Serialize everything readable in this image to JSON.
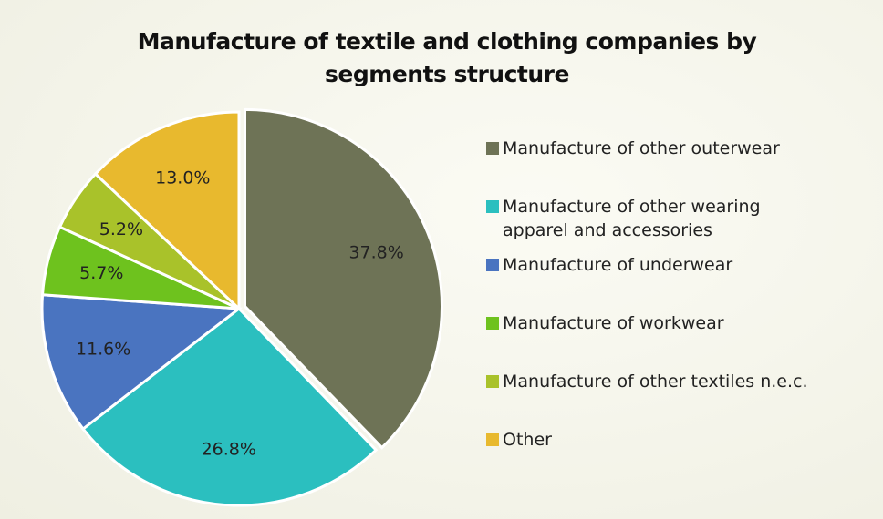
{
  "chart_data": {
    "type": "pie",
    "title": "Manufacture of textile and clothing companies by segments structure",
    "categories": [
      "Manufacture of other outerwear",
      "Manufacture of other wearing apparel and accessories",
      "Manufacture of underwear",
      "Manufacture of workwear",
      "Manufacture of other textiles n.e.c.",
      "Other"
    ],
    "values": [
      37.8,
      26.8,
      11.6,
      5.7,
      5.2,
      13.0
    ],
    "value_labels": [
      "37.8%",
      "26.8%",
      "11.6%",
      "5.7%",
      "5.2%",
      "13.0%"
    ],
    "colors": [
      "#6e7356",
      "#2bbfbf",
      "#4a74c0",
      "#6ec21e",
      "#a9c22a",
      "#e8b92e"
    ],
    "legend": "right"
  }
}
